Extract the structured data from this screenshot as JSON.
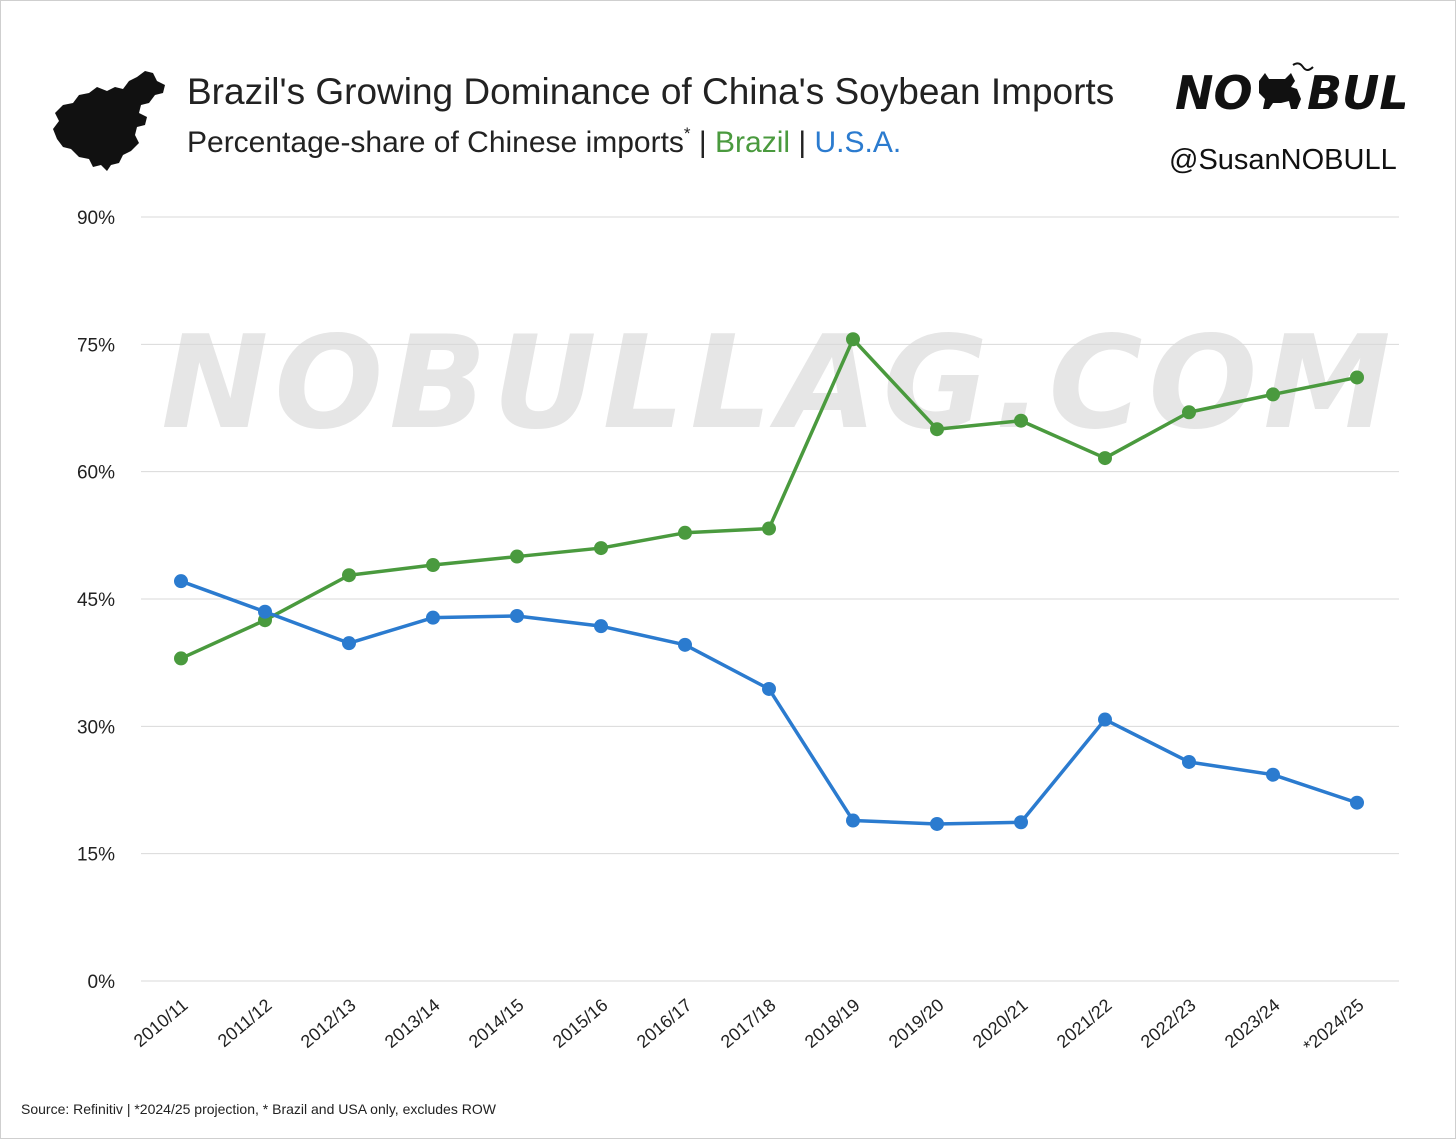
{
  "header": {
    "title": "Brazil's Growing Dominance of China's Soybean Imports",
    "subtitle_prefix": "Percentage-share of Chinese imports",
    "subtitle_marker": "*",
    "separator_1": " | ",
    "brazil_label": "Brazil",
    "separator_2": " | ",
    "usa_label": "U.S.A.",
    "brand_left": "NO",
    "brand_right": "BULL",
    "handle": "@SusanNOBULL",
    "icons": {
      "country": "china-map-icon",
      "brand": "bull-icon"
    }
  },
  "watermark": "NOBULLAG.COM",
  "footer": {
    "source": "Source: Refinitiv | *2024/25 projection, * Brazil and USA only, excludes ROW"
  },
  "colors": {
    "brazil": "#4a9a3e",
    "usa": "#2b7bcf",
    "grid": "#d9d9d9",
    "text": "#222222"
  },
  "chart_data": {
    "type": "line",
    "title": "Brazil's Growing Dominance of China's Soybean Imports",
    "subtitle": "Percentage-share of Chinese imports* | Brazil | U.S.A.",
    "xlabel": "",
    "ylabel": "",
    "categories": [
      "2010/11",
      "2011/12",
      "2012/13",
      "2013/14",
      "2014/15",
      "2015/16",
      "2016/17",
      "2017/18",
      "2018/19",
      "2019/20",
      "2020/21",
      "2021/22",
      "2022/23",
      "2023/24",
      "*2024/25"
    ],
    "series": [
      {
        "name": "Brazil",
        "color": "#4a9a3e",
        "values": [
          38.0,
          42.5,
          47.8,
          49.0,
          50.0,
          51.0,
          52.8,
          53.3,
          75.6,
          65.0,
          66.0,
          61.6,
          67.0,
          69.1,
          71.1
        ]
      },
      {
        "name": "U.S.A.",
        "color": "#2b7bcf",
        "values": [
          47.1,
          43.5,
          39.8,
          42.8,
          43.0,
          41.8,
          39.6,
          34.4,
          18.9,
          18.5,
          18.7,
          30.8,
          25.8,
          24.3,
          21.0
        ]
      }
    ],
    "ylim": [
      0,
      90
    ],
    "yticks": [
      0,
      15,
      30,
      45,
      60,
      75,
      90
    ],
    "ytick_labels": [
      "0%",
      "15%",
      "30%",
      "45%",
      "60%",
      "75%",
      "90%"
    ],
    "grid": true,
    "legend": "none"
  }
}
